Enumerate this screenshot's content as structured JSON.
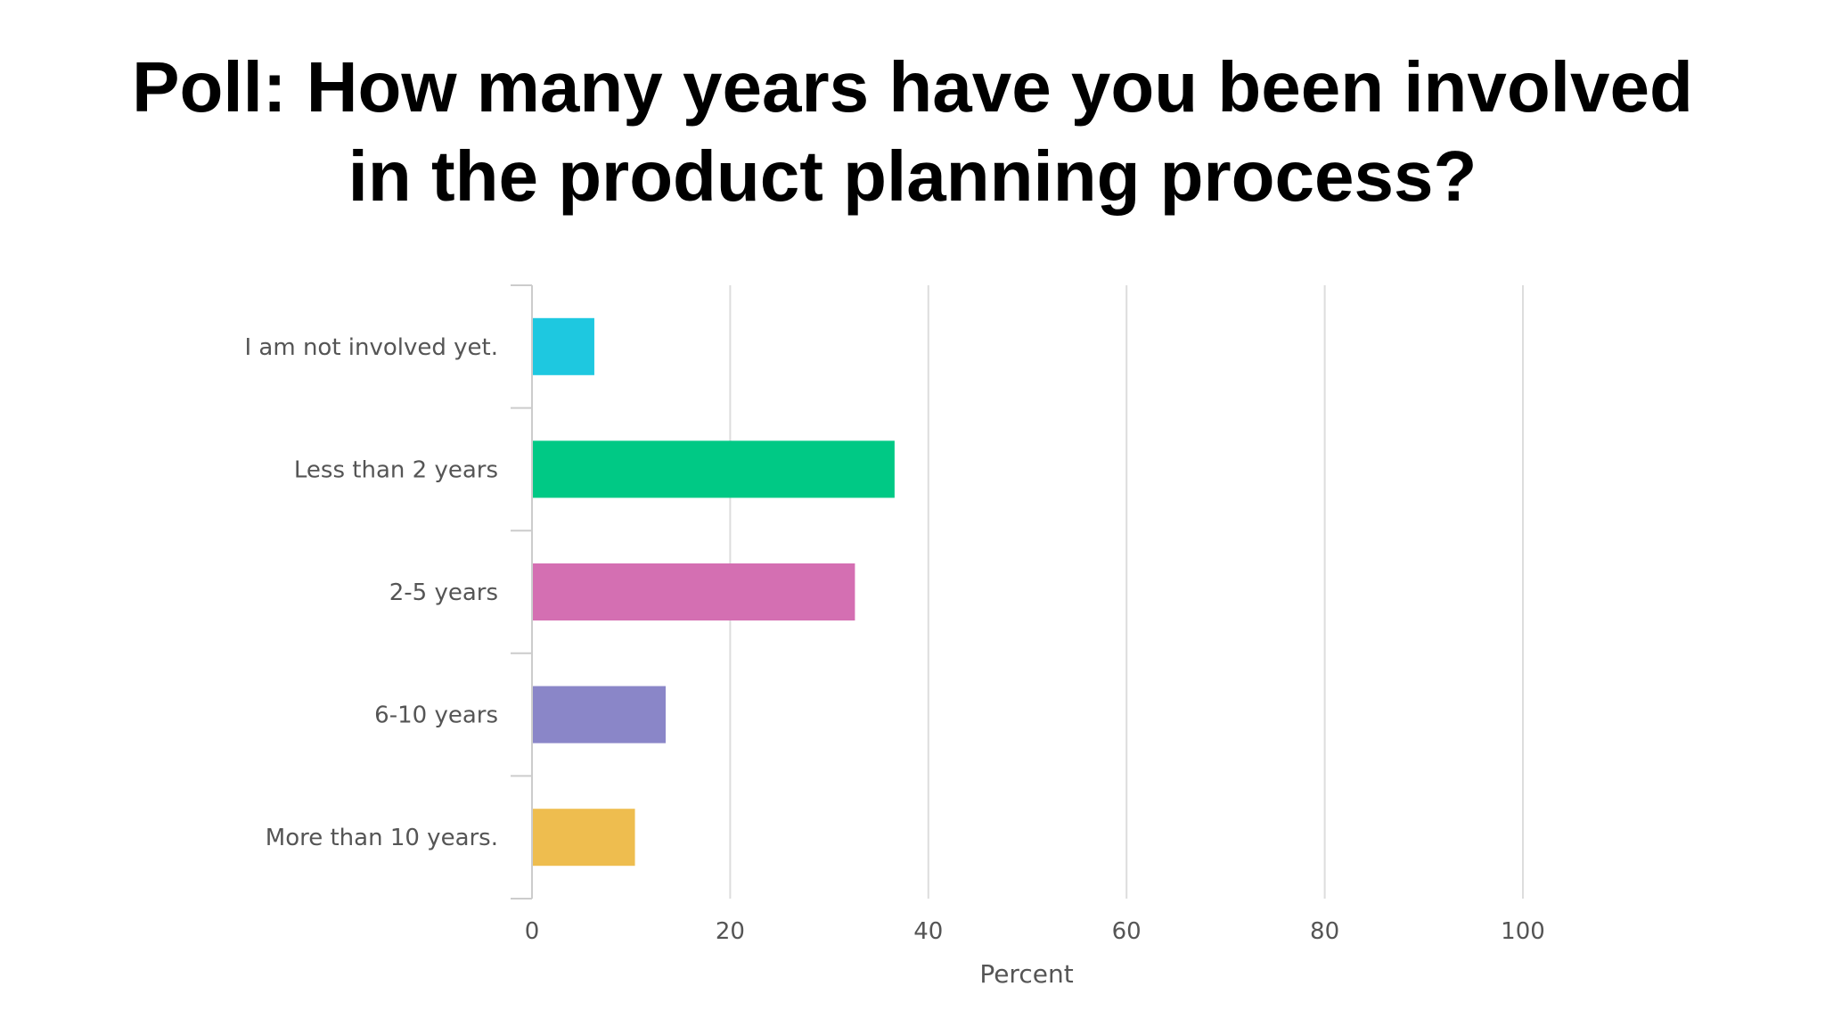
{
  "title_line1": "Poll: How many years have you been involved",
  "title_line2": "in the product planning process?",
  "chart_data": {
    "type": "bar",
    "orientation": "horizontal",
    "categories": [
      "I am not involved yet.",
      "Less than 2 years",
      "2-5 years",
      "6-10 years",
      "More than 10 years."
    ],
    "values": [
      6.2,
      36.5,
      32.5,
      13.4,
      10.3
    ],
    "colors": [
      "#1ec8e0",
      "#00c985",
      "#d46fb2",
      "#8a86c8",
      "#eebd4f"
    ],
    "xlabel": "Percent",
    "ylabel": "",
    "xlim": [
      0,
      100
    ],
    "xticks": [
      "0",
      "20",
      "40",
      "60",
      "80",
      "100"
    ],
    "grid": "vertical",
    "legend": "none"
  }
}
